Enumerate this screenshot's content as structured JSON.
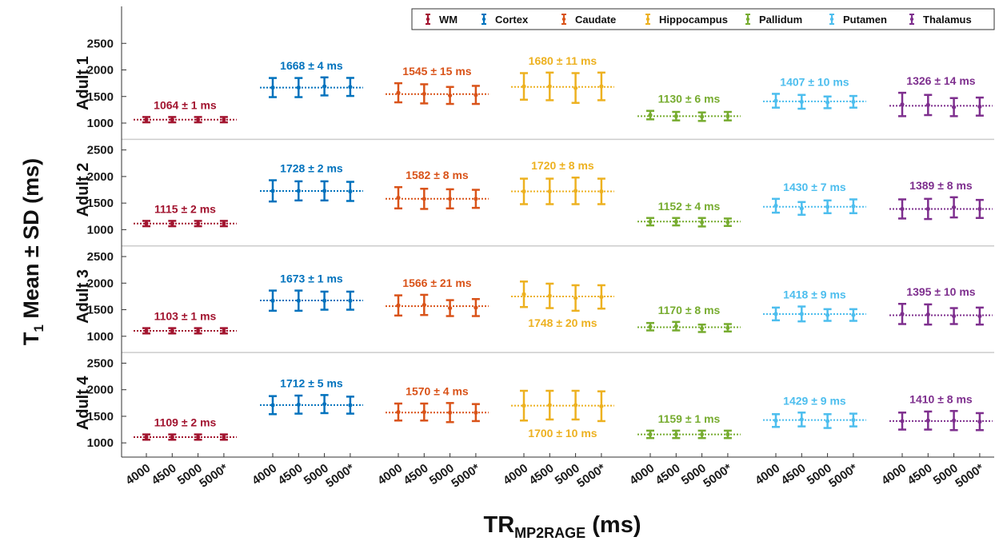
{
  "chart_data": {
    "type": "scatter",
    "ylabel": "T1 Mean ± SD (ms)",
    "ylabel_parts": {
      "main": "T",
      "sub": "1",
      "rest": " Mean ± SD (ms)"
    },
    "xlabel": "TRMP2RAGE (ms)",
    "xlabel_parts": {
      "main": "TR",
      "sub": "MP2RAGE",
      "rest": " (ms)"
    },
    "x_ticks": [
      "4000",
      "4500",
      "5000",
      "5000*"
    ],
    "y_ticks": [
      "1000",
      "1500",
      "2000",
      "2500"
    ],
    "ylim": [
      900,
      2700
    ],
    "legend_position": "top-right",
    "grid": "horizontal separators between subjects",
    "regions": [
      {
        "name": "WM",
        "color": "#a2142f"
      },
      {
        "name": "Cortex",
        "color": "#0072bd"
      },
      {
        "name": "Caudate",
        "color": "#d95319"
      },
      {
        "name": "Hippocampus",
        "color": "#edb120"
      },
      {
        "name": "Pallidum",
        "color": "#77ac30"
      },
      {
        "name": "Putamen",
        "color": "#4dbeee"
      },
      {
        "name": "Thalamus",
        "color": "#7e2f8e"
      }
    ],
    "subjects": [
      {
        "name": "Adult 1",
        "annotations": [
          "1064 ± 1 ms",
          "1668 ± 4 ms",
          "1545 ± 15 ms",
          "1680 ± 11 ms",
          "1130 ± 6 ms",
          "1407 ± 10 ms",
          "1326 ± 14 ms"
        ],
        "annotation_below": [
          false,
          false,
          false,
          false,
          false,
          false,
          false
        ],
        "means": [
          1064,
          1668,
          1545,
          1680,
          1130,
          1407,
          1326
        ],
        "points": [
          [
            [
              1064,
              50
            ],
            [
              1064,
              50
            ],
            [
              1064,
              50
            ],
            [
              1064,
              50
            ]
          ],
          [
            [
              1668,
              180
            ],
            [
              1668,
              180
            ],
            [
              1690,
              170
            ],
            [
              1680,
              170
            ]
          ],
          [
            [
              1570,
              180
            ],
            [
              1550,
              180
            ],
            [
              1520,
              160
            ],
            [
              1530,
              170
            ]
          ],
          [
            [
              1690,
              250
            ],
            [
              1690,
              260
            ],
            [
              1660,
              280
            ],
            [
              1690,
              260
            ]
          ],
          [
            [
              1150,
              80
            ],
            [
              1130,
              80
            ],
            [
              1120,
              80
            ],
            [
              1130,
              80
            ]
          ],
          [
            [
              1420,
              130
            ],
            [
              1400,
              130
            ],
            [
              1390,
              110
            ],
            [
              1400,
              110
            ]
          ],
          [
            [
              1350,
              220
            ],
            [
              1340,
              190
            ],
            [
              1300,
              170
            ],
            [
              1310,
              170
            ]
          ]
        ]
      },
      {
        "name": "Adult 2",
        "annotations": [
          "1115 ± 2 ms",
          "1728 ± 2 ms",
          "1582 ± 8 ms",
          "1720 ± 8 ms",
          "1152 ± 4 ms",
          "1430 ± 7 ms",
          "1389 ± 8 ms"
        ],
        "annotation_below": [
          false,
          false,
          false,
          false,
          false,
          false,
          false
        ],
        "means": [
          1115,
          1728,
          1582,
          1720,
          1152,
          1430,
          1389
        ],
        "points": [
          [
            [
              1115,
              50
            ],
            [
              1115,
              50
            ],
            [
              1115,
              50
            ],
            [
              1115,
              50
            ]
          ],
          [
            [
              1730,
              200
            ],
            [
              1730,
              180
            ],
            [
              1730,
              180
            ],
            [
              1720,
              180
            ]
          ],
          [
            [
              1600,
              200
            ],
            [
              1580,
              190
            ],
            [
              1580,
              180
            ],
            [
              1580,
              170
            ]
          ],
          [
            [
              1720,
              240
            ],
            [
              1720,
              240
            ],
            [
              1730,
              250
            ],
            [
              1720,
              240
            ]
          ],
          [
            [
              1150,
              70
            ],
            [
              1150,
              70
            ],
            [
              1140,
              80
            ],
            [
              1140,
              70
            ]
          ],
          [
            [
              1450,
              130
            ],
            [
              1400,
              120
            ],
            [
              1430,
              120
            ],
            [
              1440,
              130
            ]
          ],
          [
            [
              1390,
              180
            ],
            [
              1390,
              190
            ],
            [
              1420,
              190
            ],
            [
              1390,
              170
            ]
          ]
        ]
      },
      {
        "name": "Adult 3",
        "annotations": [
          "1103 ± 1 ms",
          "1673 ± 1 ms",
          "1566 ± 21 ms",
          "1748 ± 20 ms",
          "1170 ± 8 ms",
          "1418 ± 9 ms",
          "1395 ± 10 ms"
        ],
        "annotation_below": [
          false,
          false,
          false,
          true,
          false,
          false,
          false
        ],
        "means": [
          1103,
          1673,
          1566,
          1748,
          1170,
          1418,
          1395
        ],
        "points": [
          [
            [
              1103,
              50
            ],
            [
              1103,
              50
            ],
            [
              1103,
              50
            ],
            [
              1103,
              50
            ]
          ],
          [
            [
              1670,
              190
            ],
            [
              1670,
              190
            ],
            [
              1670,
              170
            ],
            [
              1670,
              170
            ]
          ],
          [
            [
              1580,
              190
            ],
            [
              1590,
              190
            ],
            [
              1530,
              150
            ],
            [
              1540,
              160
            ]
          ],
          [
            [
              1790,
              240
            ],
            [
              1760,
              230
            ],
            [
              1720,
              240
            ],
            [
              1740,
              220
            ]
          ],
          [
            [
              1180,
              70
            ],
            [
              1190,
              80
            ],
            [
              1150,
              70
            ],
            [
              1160,
              70
            ]
          ],
          [
            [
              1420,
              120
            ],
            [
              1420,
              140
            ],
            [
              1400,
              110
            ],
            [
              1400,
              110
            ]
          ],
          [
            [
              1420,
              190
            ],
            [
              1410,
              190
            ],
            [
              1380,
              150
            ],
            [
              1380,
              160
            ]
          ]
        ]
      },
      {
        "name": "Adult 4",
        "annotations": [
          "1109 ± 2 ms",
          "1712 ± 5 ms",
          "1570 ± 4 ms",
          "1700 ± 10 ms",
          "1159 ± 1 ms",
          "1429 ± 9 ms",
          "1410 ± 8 ms"
        ],
        "annotation_below": [
          false,
          false,
          false,
          true,
          false,
          false,
          false
        ],
        "means": [
          1109,
          1712,
          1570,
          1700,
          1159,
          1429,
          1410
        ],
        "points": [
          [
            [
              1109,
              50
            ],
            [
              1109,
              50
            ],
            [
              1109,
              50
            ],
            [
              1109,
              50
            ]
          ],
          [
            [
              1710,
              170
            ],
            [
              1720,
              170
            ],
            [
              1730,
              170
            ],
            [
              1710,
              160
            ]
          ],
          [
            [
              1580,
              160
            ],
            [
              1580,
              160
            ],
            [
              1570,
              180
            ],
            [
              1570,
              160
            ]
          ],
          [
            [
              1700,
              280
            ],
            [
              1710,
              270
            ],
            [
              1710,
              270
            ],
            [
              1690,
              280
            ]
          ],
          [
            [
              1160,
              70
            ],
            [
              1160,
              70
            ],
            [
              1160,
              70
            ],
            [
              1160,
              70
            ]
          ],
          [
            [
              1420,
              120
            ],
            [
              1440,
              130
            ],
            [
              1410,
              130
            ],
            [
              1430,
              120
            ]
          ],
          [
            [
              1410,
              160
            ],
            [
              1420,
              170
            ],
            [
              1420,
              180
            ],
            [
              1400,
              160
            ]
          ]
        ]
      }
    ]
  }
}
